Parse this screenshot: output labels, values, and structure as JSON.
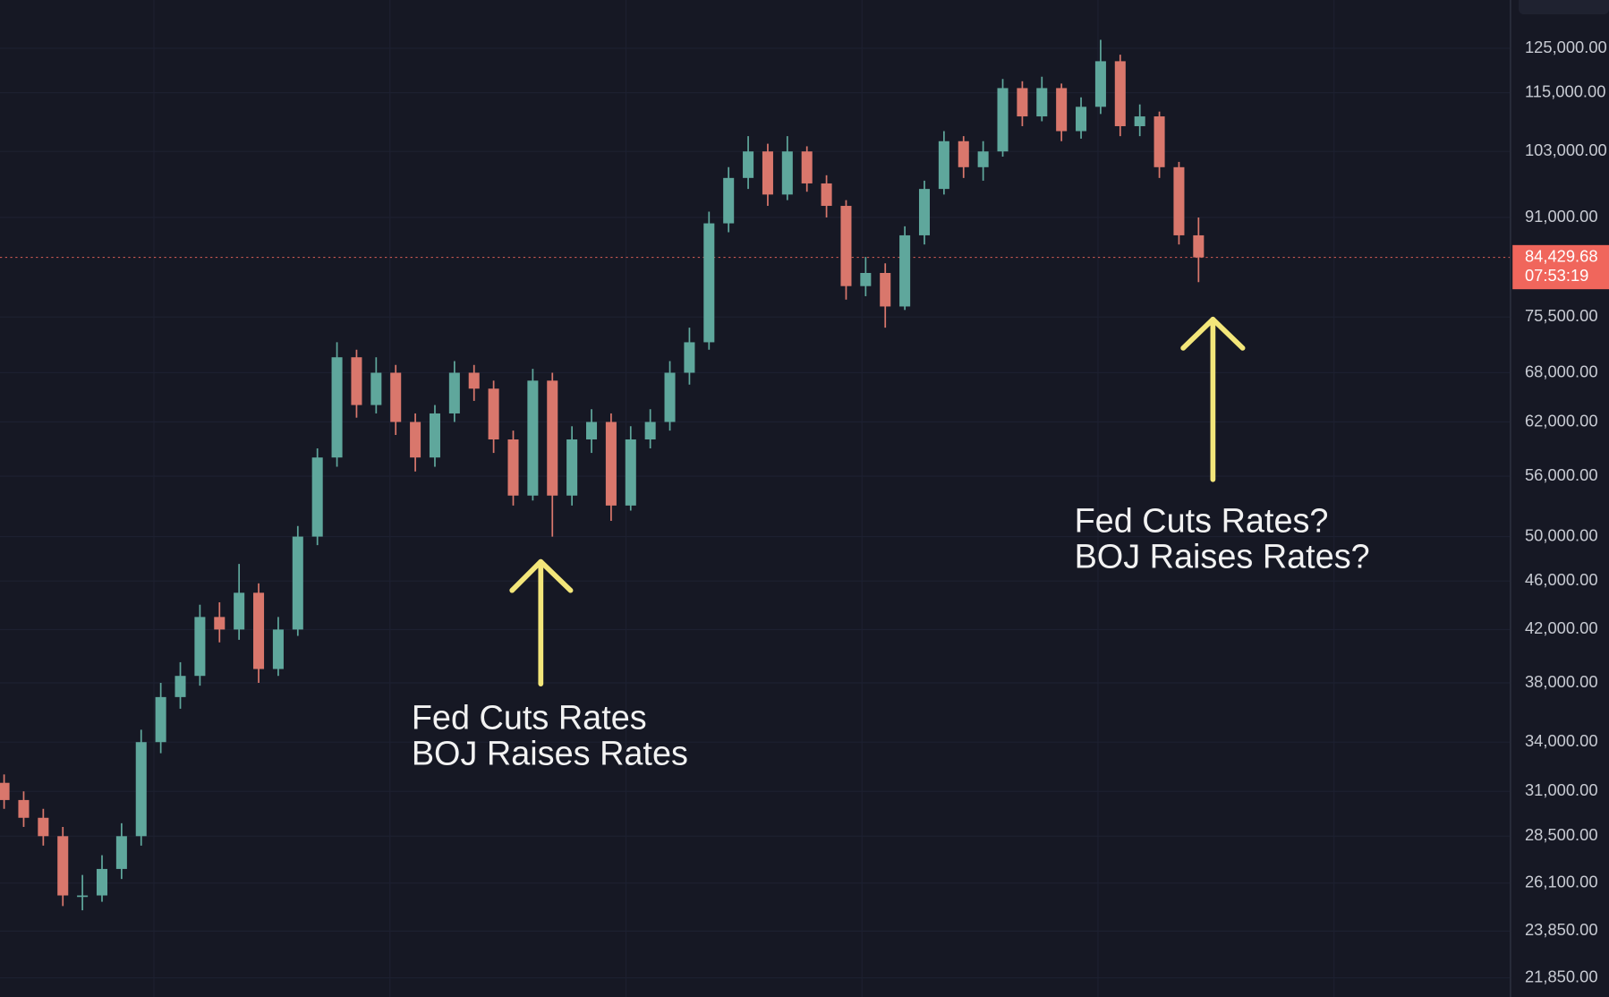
{
  "chart_data": {
    "type": "candlestick",
    "log_scale": true,
    "grid": true,
    "up_color": "#5fa79c",
    "down_color": "#d9776c",
    "ylim": [
      21076,
      136850
    ],
    "yticks": [
      {
        "value": 125000,
        "label": "125,000.00"
      },
      {
        "value": 115000,
        "label": "115,000.00"
      },
      {
        "value": 103000,
        "label": "103,000.00"
      },
      {
        "value": 91000,
        "label": "91,000.00"
      },
      {
        "value": 75500,
        "label": "75,500.00"
      },
      {
        "value": 68000,
        "label": "68,000.00"
      },
      {
        "value": 62000,
        "label": "62,000.00"
      },
      {
        "value": 56000,
        "label": "56,000.00"
      },
      {
        "value": 50000,
        "label": "50,000.00"
      },
      {
        "value": 46000,
        "label": "46,000.00"
      },
      {
        "value": 42000,
        "label": "42,000.00"
      },
      {
        "value": 38000,
        "label": "38,000.00"
      },
      {
        "value": 34000,
        "label": "34,000.00"
      },
      {
        "value": 31000,
        "label": "31,000.00"
      },
      {
        "value": 28500,
        "label": "28,500.00"
      },
      {
        "value": 26100,
        "label": "26,100.00"
      },
      {
        "value": 23850,
        "label": "23,850.00"
      },
      {
        "value": 21850,
        "label": "21,850.00"
      }
    ],
    "last_price": {
      "value": 84429.68,
      "label": "84,429.68",
      "countdown": "07:53:19",
      "color": "#f0665c"
    },
    "open": [
      31500,
      30500,
      29500,
      28500,
      25500,
      25500,
      26800,
      28500,
      34000,
      37000,
      38500,
      43000,
      42000,
      45000,
      39000,
      42000,
      50000,
      58000,
      70000,
      64000,
      68000,
      62000,
      58000,
      63000,
      68000,
      66000,
      60000,
      54000,
      67000,
      54000,
      60000,
      62000,
      53000,
      60000,
      62000,
      68000,
      72000,
      90000,
      98000,
      103000,
      95000,
      103000,
      97000,
      93000,
      80000,
      82000,
      77000,
      88000,
      96000,
      105000,
      100000,
      103000,
      116000,
      110000,
      116000,
      107000,
      112000,
      122000,
      108000,
      110000,
      100000,
      88000
    ],
    "high": [
      32000,
      31000,
      30000,
      29000,
      26500,
      27500,
      29200,
      34800,
      38000,
      39500,
      44000,
      44200,
      47500,
      45800,
      43000,
      51000,
      59000,
      72000,
      71000,
      70000,
      69000,
      63000,
      64000,
      69500,
      69000,
      67000,
      61000,
      68500,
      68000,
      61500,
      63500,
      63000,
      61500,
      63500,
      69500,
      74000,
      92000,
      100000,
      106000,
      104500,
      106000,
      104000,
      98500,
      94000,
      84500,
      83500,
      89500,
      97500,
      107000,
      106000,
      105000,
      118000,
      117500,
      118500,
      117000,
      114000,
      127000,
      123500,
      112500,
      111000,
      101000,
      91000
    ],
    "low": [
      30000,
      29000,
      28000,
      25000,
      24800,
      25200,
      26300,
      28000,
      33300,
      36200,
      37800,
      41000,
      41200,
      38000,
      38500,
      41500,
      49200,
      57000,
      62500,
      63000,
      60500,
      56500,
      57000,
      62000,
      64500,
      58500,
      53000,
      53500,
      50000,
      53000,
      58500,
      51500,
      52500,
      59000,
      61000,
      66500,
      71000,
      88500,
      96000,
      93000,
      94000,
      95500,
      91000,
      78000,
      78500,
      74000,
      76500,
      86500,
      95000,
      98000,
      97500,
      102000,
      108000,
      109000,
      105000,
      105500,
      110500,
      106000,
      106000,
      98000,
      86500,
      80600
    ],
    "close": [
      30500,
      29500,
      28500,
      25500,
      25500,
      26800,
      28500,
      34000,
      37000,
      38500,
      43000,
      42000,
      45000,
      39000,
      42000,
      50000,
      58000,
      70000,
      64000,
      68000,
      62000,
      58000,
      63000,
      68000,
      66000,
      60000,
      54000,
      67000,
      54000,
      60000,
      62000,
      53000,
      60000,
      62000,
      68000,
      72000,
      90000,
      98000,
      103000,
      95000,
      103000,
      97000,
      93000,
      80000,
      82000,
      77000,
      88000,
      96000,
      105000,
      100000,
      103000,
      116000,
      110000,
      116000,
      107000,
      112000,
      122000,
      108000,
      110000,
      100000,
      88000,
      84429.68
    ],
    "annotations": [
      {
        "lines": [
          "Fed Cuts Rates",
          "BOJ Raises Rates"
        ]
      },
      {
        "lines": [
          "Fed Cuts Rates?",
          "BOJ Raises Rates?"
        ]
      }
    ]
  }
}
